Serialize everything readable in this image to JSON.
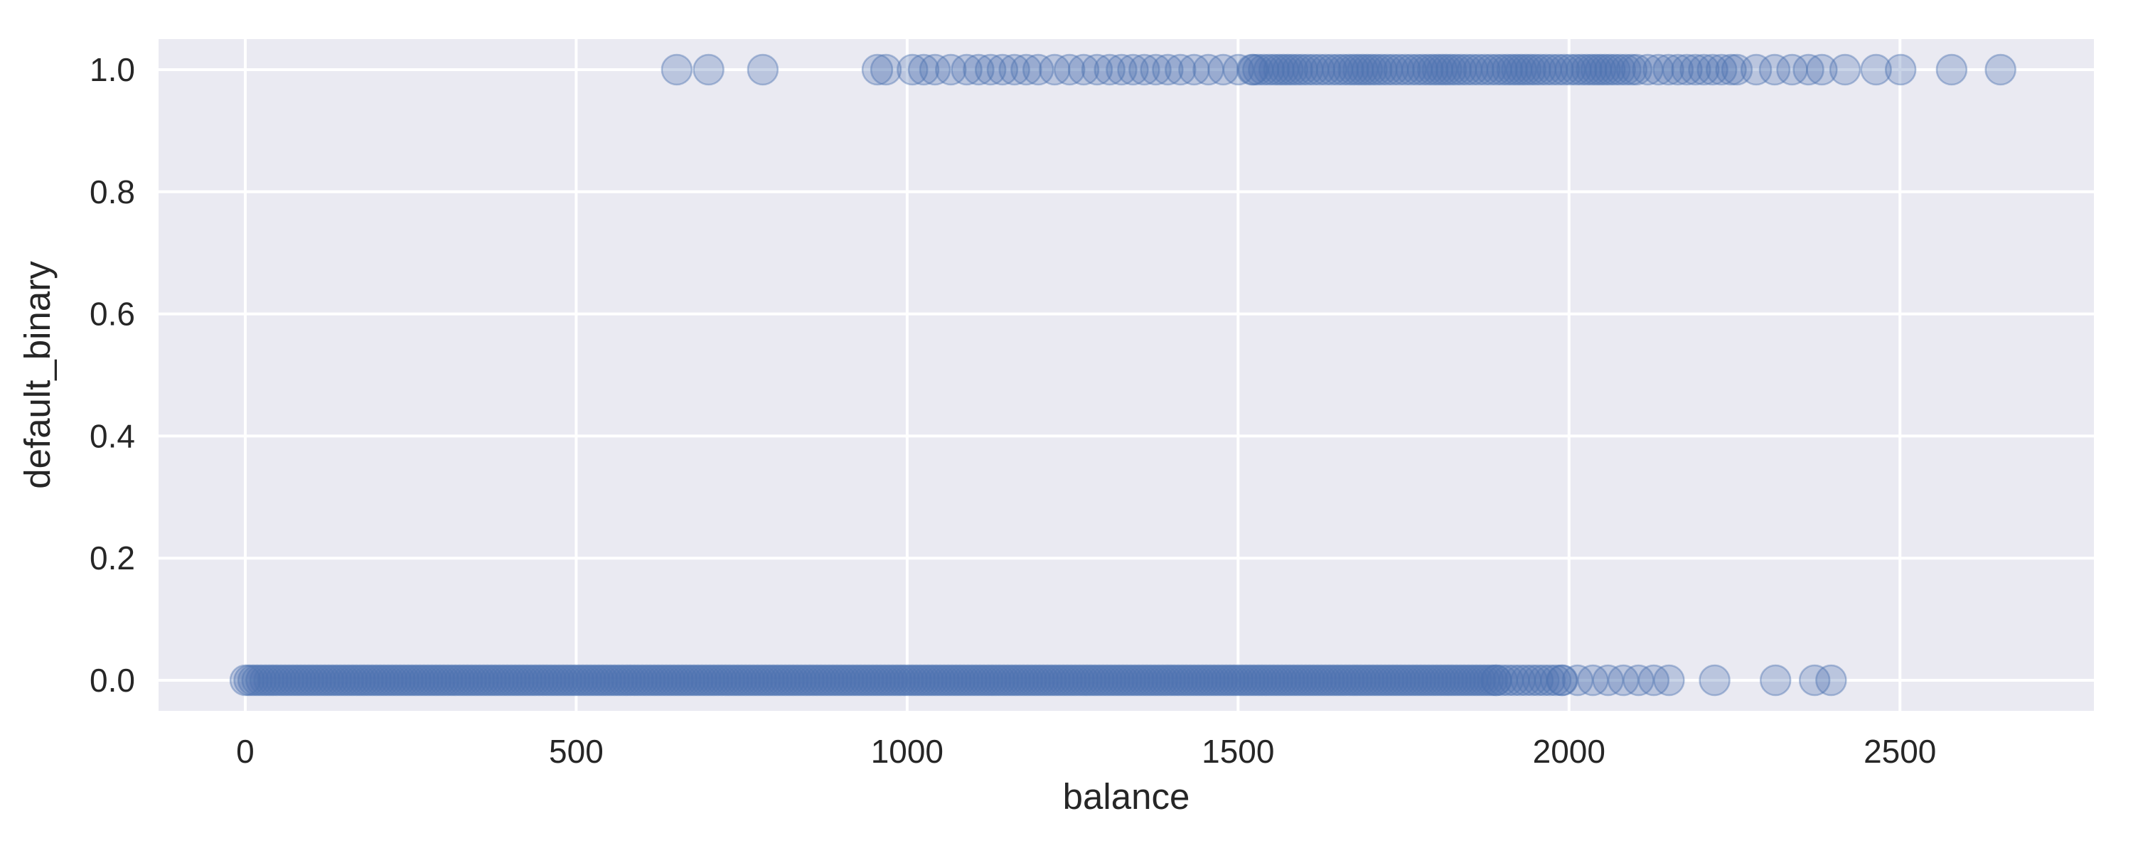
{
  "figure": {
    "xlabel": "balance",
    "ylabel": "default_binary",
    "x_tick_labels": [
      "0",
      "500",
      "1000",
      "1500",
      "2000",
      "2500"
    ],
    "y_tick_labels": [
      "0.0",
      "0.2",
      "0.4",
      "0.6",
      "0.8",
      "1.0"
    ]
  },
  "colors": {
    "plot_background": "#eaeaf2",
    "gridline": "#ffffff",
    "point": "#4c72b0",
    "text": "#262626"
  },
  "chart_data": {
    "type": "scatter",
    "title": "",
    "xlabel": "balance",
    "ylabel": "default_binary",
    "x_ticks": [
      0,
      500,
      1000,
      1500,
      2000,
      2500
    ],
    "y_ticks": [
      0.0,
      0.2,
      0.4,
      0.6,
      0.8,
      1.0
    ],
    "xlim": [
      -131,
      2793
    ],
    "ylim": [
      -0.05,
      1.05
    ],
    "grid": true,
    "legend": false,
    "point_alpha": 0.3,
    "point_color": "#4c72b0",
    "series": [
      {
        "name": "default_binary = 0",
        "y": 0,
        "description": "solid dense band of overlapping points from balance 0 to ~1890, thinning out to ~2170, then isolated points",
        "dense_segments": [
          {
            "from": 0,
            "to": 1890,
            "step": 6
          },
          {
            "from": 1890,
            "to": 1990,
            "step": 9
          },
          {
            "from": 1990,
            "to": 2170,
            "step": 23
          }
        ],
        "points": [
          2220,
          2312,
          2371,
          2396
        ]
      },
      {
        "name": "default_binary = 1",
        "y": 1,
        "description": "sparse isolated points from balance ~650, chain of overlapping points from ~1220, dense from ~1520 to ~2250, thinning to isolated points out to ~2650",
        "dense_segments": [
          {
            "from": 1220,
            "to": 1520,
            "step": 20
          },
          {
            "from": 1520,
            "to": 2100,
            "step": 8
          },
          {
            "from": 2100,
            "to": 2250,
            "step": 15
          },
          {
            "from": 2250,
            "to": 2360,
            "step": 26
          }
        ],
        "points": [
          652,
          700,
          782,
          955,
          968,
          1008,
          1025,
          1042,
          1066,
          1090,
          1108,
          1126,
          1144,
          1162,
          1180,
          1198,
          2382,
          2417,
          2464,
          2501,
          2578,
          2652
        ]
      }
    ]
  }
}
